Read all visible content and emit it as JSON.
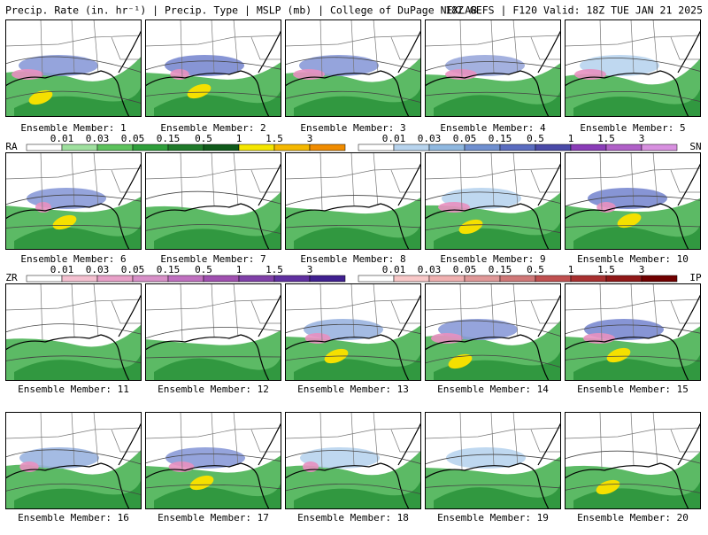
{
  "header": {
    "title": "Precip. Rate (in. hr⁻¹) | Precip. Type | MSLP (mb) | College of DuPage NEXLAB",
    "run": "18Z GEFS | F120 Valid: 18Z TUE JAN 21 2025"
  },
  "panels": [
    {
      "label": "Ensemble Member: 1"
    },
    {
      "label": "Ensemble Member: 2"
    },
    {
      "label": "Ensemble Member: 3"
    },
    {
      "label": "Ensemble Member: 4"
    },
    {
      "label": "Ensemble Member: 5"
    },
    {
      "label": "Ensemble Member: 6"
    },
    {
      "label": "Ensemble Member: 7"
    },
    {
      "label": "Ensemble Member: 8"
    },
    {
      "label": "Ensemble Member: 9"
    },
    {
      "label": "Ensemble Member: 10"
    },
    {
      "label": "Ensemble Member: 11"
    },
    {
      "label": "Ensemble Member: 12"
    },
    {
      "label": "Ensemble Member: 13"
    },
    {
      "label": "Ensemble Member: 14"
    },
    {
      "label": "Ensemble Member: 15"
    },
    {
      "label": "Ensemble Member: 16"
    },
    {
      "label": "Ensemble Member: 17"
    },
    {
      "label": "Ensemble Member: 18"
    },
    {
      "label": "Ensemble Member: 19"
    },
    {
      "label": "Ensemble Member: 20"
    }
  ],
  "colorbars": [
    {
      "type": "RA",
      "labels": [
        "0.01",
        "0.03",
        "0.05",
        "0.15",
        "0.5",
        "1",
        "1.5",
        "3"
      ],
      "colors": [
        "#ffffff",
        "#9fe09f",
        "#5cc25c",
        "#2e9e3a",
        "#1f7a2a",
        "#0f5a1a",
        "#f5e600",
        "#f5b800",
        "#f08c00"
      ]
    },
    {
      "type": "SN",
      "labels": [
        "0.01",
        "0.03",
        "0.05",
        "0.15",
        "0.5",
        "1",
        "1.5",
        "3"
      ],
      "colors": [
        "#ffffff",
        "#b8d4ee",
        "#8fb8e0",
        "#6f8fd0",
        "#5a6cc0",
        "#4a4aa8",
        "#8a3cb8",
        "#b060c8",
        "#d890e0"
      ]
    },
    {
      "type": "ZR",
      "labels": [
        "0.01",
        "0.03",
        "0.05",
        "0.15",
        "0.5",
        "1",
        "1.5",
        "3"
      ],
      "colors": [
        "#ffffff",
        "#f4c0d0",
        "#e8a0c8",
        "#d890c8",
        "#c070c0",
        "#a050b0",
        "#8040a8",
        "#6030a0",
        "#402090"
      ]
    },
    {
      "type": "IP",
      "labels": [
        "0.01",
        "0.03",
        "0.05",
        "0.15",
        "0.5",
        "1",
        "1.5",
        "3"
      ],
      "colors": [
        "#ffffff",
        "#f8c8c8",
        "#f0b0b0",
        "#e09898",
        "#d07878",
        "#c05050",
        "#a83030",
        "#901818",
        "#700000"
      ]
    }
  ]
}
